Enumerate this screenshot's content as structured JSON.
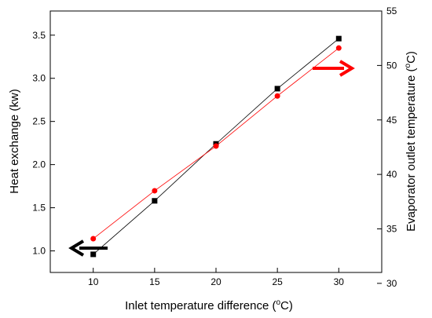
{
  "chart_data": {
    "type": "line",
    "xlabel": "Inlet temperature difference (",
    "xlabel_sup": "o",
    "xlabel_end": "C)",
    "ylabel_left": "Heat exchange (kw)",
    "ylabel_right": "Evaporator outlet temperature (",
    "ylabel_right_sup": "o",
    "ylabel_right_end": "C)",
    "x": [
      10,
      15,
      20,
      25,
      30
    ],
    "xlim": [
      6.5,
      33.5
    ],
    "ylim_left": [
      0.75,
      3.78
    ],
    "ylim_right": [
      31,
      55
    ],
    "x_ticks": [
      "10",
      "15",
      "20",
      "25",
      "30"
    ],
    "y_left_ticks": [
      "1.0",
      "1.5",
      "2.0",
      "2.5",
      "3.0",
      "3.5"
    ],
    "y_right_ticks": [
      "30",
      "35",
      "40",
      "45",
      "50",
      "55"
    ],
    "grid": false,
    "series": [
      {
        "axis": "left",
        "marker": "square",
        "color": "#000000",
        "values": [
          0.96,
          1.58,
          2.24,
          2.88,
          3.46
        ]
      },
      {
        "axis": "right",
        "marker": "circle",
        "color": "#ff0000",
        "values": [
          34.1,
          38.5,
          42.6,
          47.2,
          51.6
        ]
      }
    ],
    "arrows": [
      {
        "points_to": "left-axis",
        "color": "#000000"
      },
      {
        "points_to": "right-axis",
        "color": "#ff0000"
      }
    ]
  }
}
